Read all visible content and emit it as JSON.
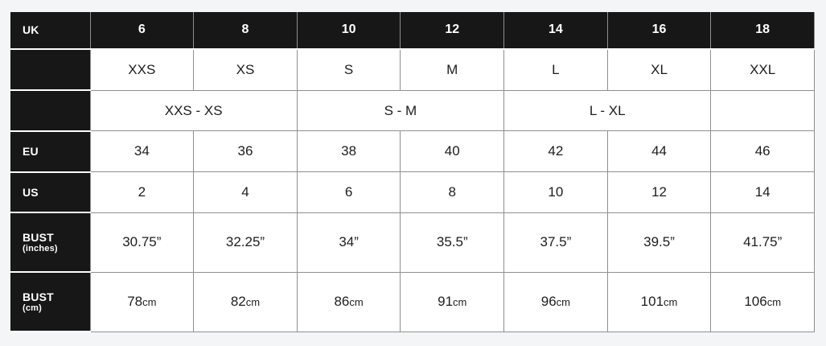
{
  "page": {
    "background_color": "#f4f5f6"
  },
  "colors": {
    "dark_cell_bg": "#171717",
    "light_cell_bg": "#ffffff",
    "grid_line": "#8f8f8f",
    "dark_cell_divider": "#ffffff",
    "dark_cell_text": "#ffffff",
    "light_cell_text": "#1d1d1d"
  },
  "table": {
    "header": {
      "label": "UK",
      "sizes": [
        "6",
        "8",
        "10",
        "12",
        "14",
        "16",
        "18"
      ]
    },
    "alpha": {
      "label": "",
      "values": [
        "XXS",
        "XS",
        "S",
        "M",
        "L",
        "XL",
        "XXL"
      ]
    },
    "groups": {
      "label": "",
      "cells": [
        {
          "text": "XXS - XS",
          "span": 2
        },
        {
          "text": "S - M",
          "span": 2
        },
        {
          "text": "L - XL",
          "span": 2
        },
        {
          "text": "",
          "span": 1
        }
      ]
    },
    "eu": {
      "label": "EU",
      "values": [
        "34",
        "36",
        "38",
        "40",
        "42",
        "44",
        "46"
      ]
    },
    "us": {
      "label": "US",
      "values": [
        "2",
        "4",
        "6",
        "8",
        "10",
        "12",
        "14"
      ]
    },
    "bust_inches": {
      "label": "BUST",
      "sublabel": "(inches)",
      "values": [
        "30.75”",
        "32.25”",
        "34”",
        "35.5”",
        "37.5”",
        "39.5”",
        "41.75”"
      ]
    },
    "bust_cm": {
      "label": "BUST",
      "sublabel": "(cm)",
      "values": [
        {
          "num": "78",
          "unit": "cm"
        },
        {
          "num": "82",
          "unit": "cm"
        },
        {
          "num": "86",
          "unit": "cm"
        },
        {
          "num": "91",
          "unit": "cm"
        },
        {
          "num": "96",
          "unit": "cm"
        },
        {
          "num": "101",
          "unit": "cm"
        },
        {
          "num": "106",
          "unit": "cm"
        }
      ]
    }
  },
  "chart_data": {
    "type": "table",
    "columns": [
      "UK",
      "6",
      "8",
      "10",
      "12",
      "14",
      "16",
      "18"
    ],
    "rows": [
      [
        "",
        "XXS",
        "XS",
        "S",
        "M",
        "L",
        "XL",
        "XXL"
      ],
      [
        "",
        "XXS - XS",
        "XXS - XS",
        "S - M",
        "S - M",
        "L - XL",
        "L - XL",
        ""
      ],
      [
        "EU",
        "34",
        "36",
        "38",
        "40",
        "42",
        "44",
        "46"
      ],
      [
        "US",
        "2",
        "4",
        "6",
        "8",
        "10",
        "12",
        "14"
      ],
      [
        "BUST (inches)",
        "30.75”",
        "32.25”",
        "34”",
        "35.5”",
        "37.5”",
        "39.5”",
        "41.75”"
      ],
      [
        "BUST (cm)",
        "78cm",
        "82cm",
        "86cm",
        "91cm",
        "96cm",
        "101cm",
        "106cm"
      ]
    ],
    "merged_cells_note": "In the group row, XXS - XS spans UK columns 6-8, S - M spans 10-12, L - XL spans 14-16, and the 18 column cell is empty."
  }
}
